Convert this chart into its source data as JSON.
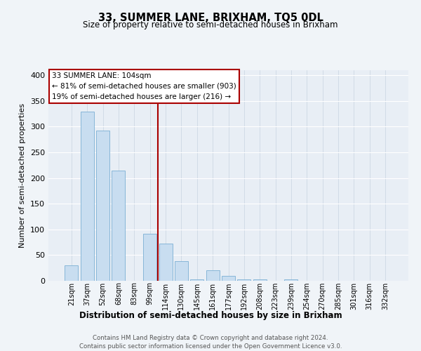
{
  "title": "33, SUMMER LANE, BRIXHAM, TQ5 0DL",
  "subtitle": "Size of property relative to semi-detached houses in Brixham",
  "xlabel": "Distribution of semi-detached houses by size in Brixham",
  "ylabel": "Number of semi-detached properties",
  "bar_labels": [
    "21sqm",
    "37sqm",
    "52sqm",
    "68sqm",
    "83sqm",
    "99sqm",
    "114sqm",
    "130sqm",
    "145sqm",
    "161sqm",
    "177sqm",
    "192sqm",
    "208sqm",
    "223sqm",
    "239sqm",
    "254sqm",
    "270sqm",
    "285sqm",
    "301sqm",
    "316sqm",
    "332sqm"
  ],
  "bar_values": [
    30,
    330,
    293,
    215,
    0,
    92,
    73,
    38,
    3,
    20,
    10,
    3,
    3,
    0,
    3,
    0,
    0,
    0,
    0,
    0,
    0
  ],
  "bar_color": "#c8ddf0",
  "bar_edge_color": "#7aafd4",
  "background_color": "#e8eef5",
  "grid_color": "#d0dae5",
  "property_size": "104sqm",
  "pct_smaller": 81,
  "n_smaller": 903,
  "pct_larger": 19,
  "n_larger": 216,
  "red_line_color": "#aa0000",
  "annotation_box_edge_color": "#aa0000",
  "footer_line1": "Contains HM Land Registry data © Crown copyright and database right 2024.",
  "footer_line2": "Contains public sector information licensed under the Open Government Licence v3.0.",
  "ylim": [
    0,
    410
  ],
  "yticks": [
    0,
    50,
    100,
    150,
    200,
    250,
    300,
    350,
    400
  ],
  "fig_bg": "#f0f4f8"
}
